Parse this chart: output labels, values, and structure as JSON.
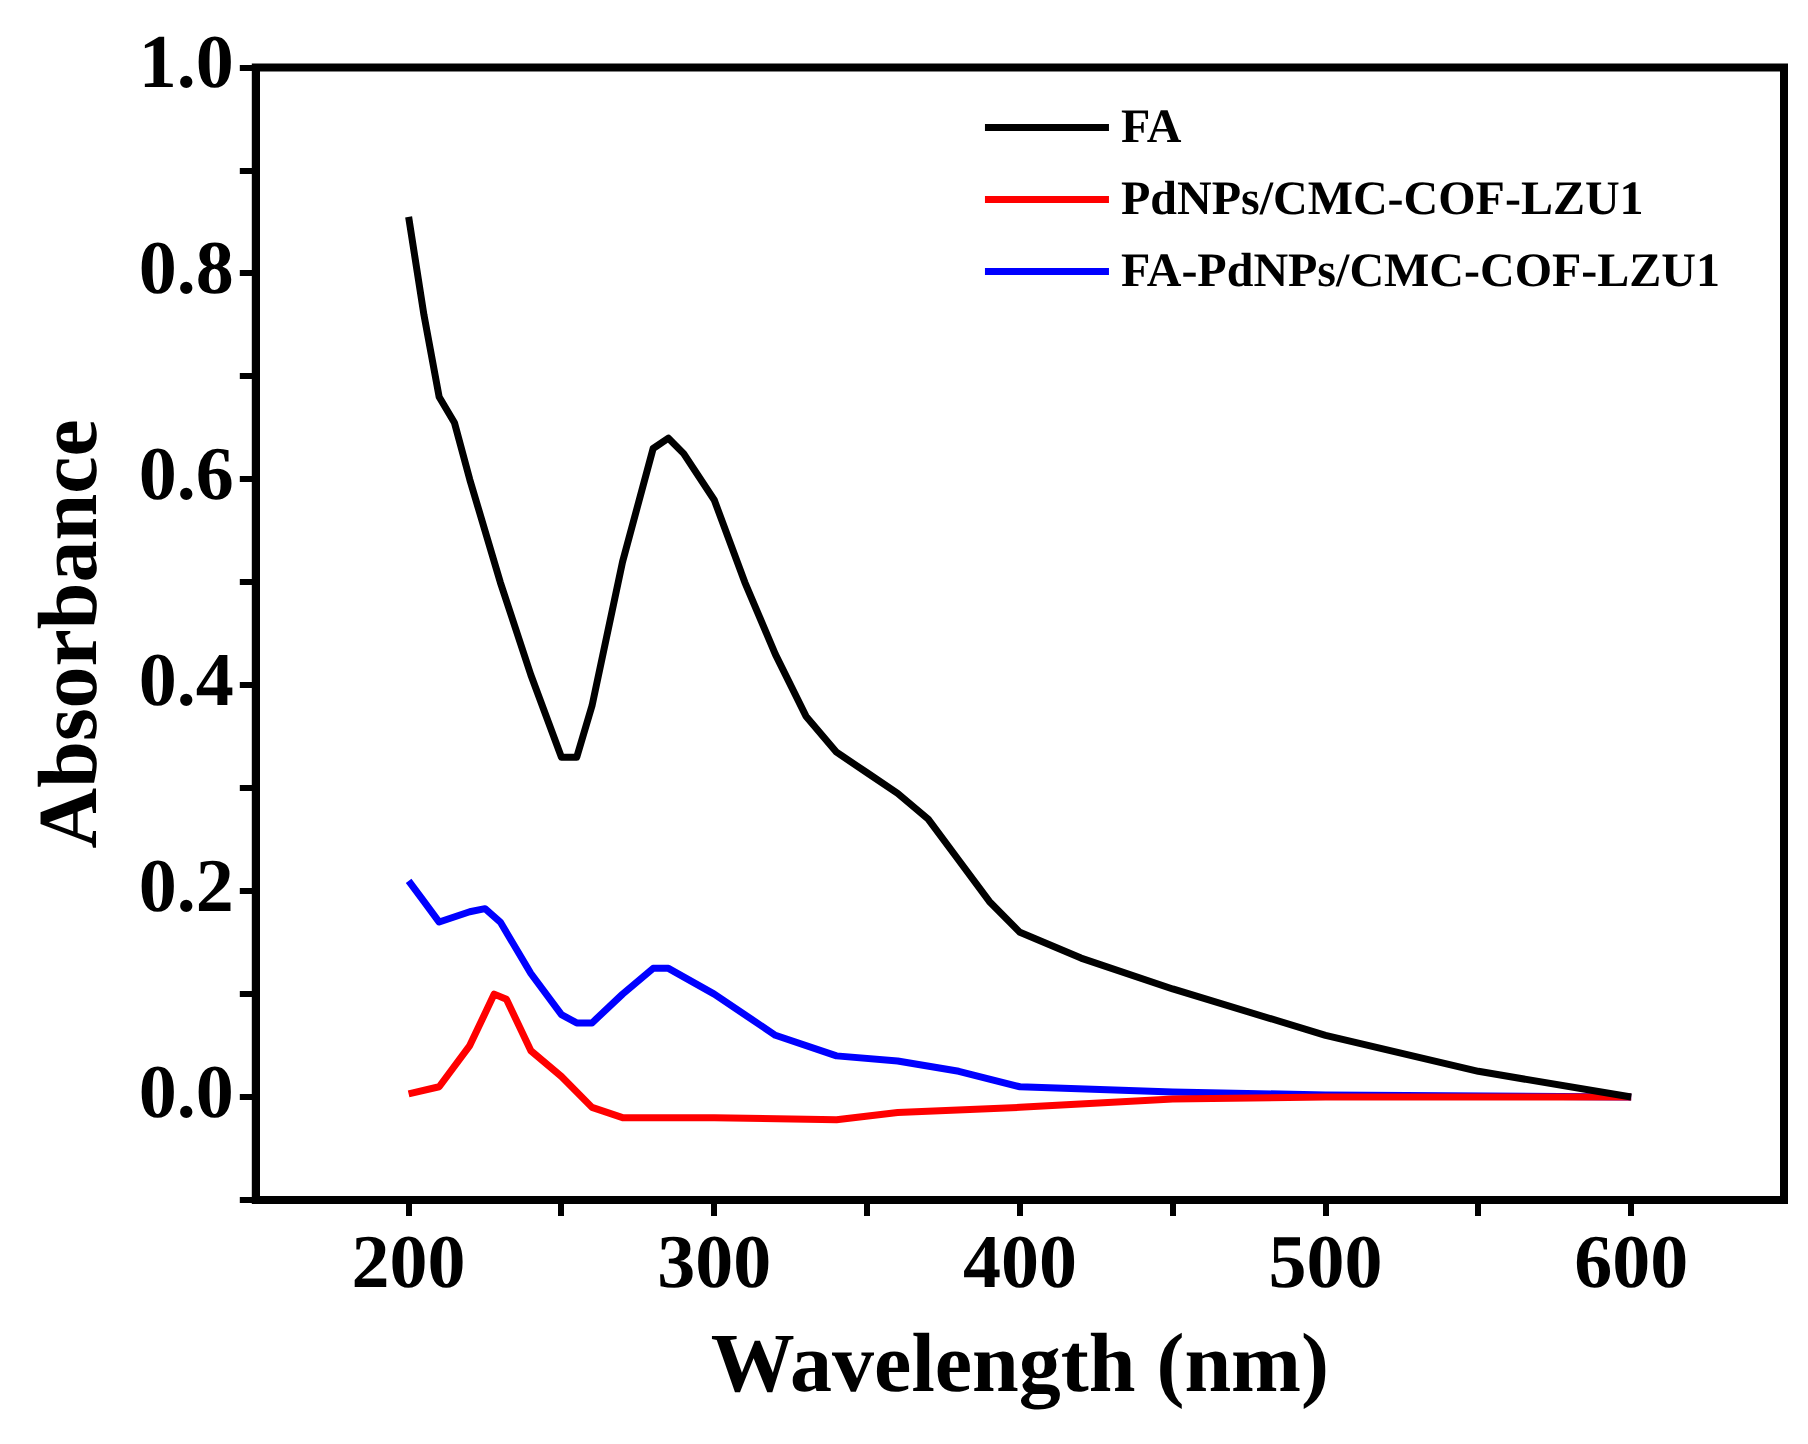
{
  "chart_data": {
    "type": "line",
    "xlabel": "Wavelength (nm)",
    "ylabel": "Absorbance",
    "xlim": [
      150,
      650
    ],
    "xticks": [
      200,
      {
        "value": 250,
        "label": null
      },
      300,
      {
        "value": 350,
        "label": null
      },
      400,
      {
        "value": 450,
        "label": null
      },
      500,
      {
        "value": 550,
        "label": null
      },
      600
    ],
    "ylim": [
      -0.1,
      1.0
    ],
    "yticks": [
      {
        "value": -0.1,
        "label": null
      },
      {
        "value": 0,
        "label": "0.0"
      },
      {
        "value": 0.1,
        "label": null
      },
      {
        "value": 0.2,
        "label": "0.2"
      },
      {
        "value": 0.3,
        "label": null
      },
      {
        "value": 0.4,
        "label": "0.4"
      },
      {
        "value": 0.5,
        "label": null
      },
      {
        "value": 0.6,
        "label": "0.6"
      },
      {
        "value": 0.7,
        "label": null
      },
      {
        "value": 0.8,
        "label": "0.8"
      },
      {
        "value": 0.9,
        "label": null
      },
      {
        "value": 1.0,
        "label": "1.0"
      }
    ],
    "grid": false,
    "legend": "top right",
    "marker": "none",
    "line_style": "solid",
    "series": [
      {
        "name": "FA",
        "color": "#000000",
        "x": [
          200,
          205,
          210,
          215,
          220,
          230,
          240,
          250,
          255,
          260,
          270,
          280,
          285,
          290,
          300,
          310,
          320,
          330,
          340,
          350,
          360,
          370,
          380,
          390,
          400,
          420,
          450,
          500,
          550,
          600
        ],
        "values": [
          0.855,
          0.76,
          0.68,
          0.655,
          0.6,
          0.5,
          0.41,
          0.33,
          0.33,
          0.38,
          0.52,
          0.63,
          0.64,
          0.625,
          0.58,
          0.5,
          0.43,
          0.37,
          0.335,
          0.315,
          0.295,
          0.27,
          0.23,
          0.19,
          0.16,
          0.135,
          0.105,
          0.06,
          0.025,
          0.0
        ]
      },
      {
        "name": "PdNPs/CMC-COF-LZU1",
        "color": "#ff0000",
        "x": [
          200,
          210,
          220,
          228,
          232,
          240,
          250,
          260,
          270,
          300,
          340,
          360,
          400,
          450,
          500,
          600
        ],
        "values": [
          0.003,
          0.01,
          0.05,
          0.1,
          0.095,
          0.045,
          0.02,
          -0.01,
          -0.02,
          -0.02,
          -0.022,
          -0.015,
          -0.01,
          -0.002,
          0.0,
          0.0
        ]
      },
      {
        "name": "FA-PdNPs/CMC-COF-LZU1",
        "color": "#0000ff",
        "x": [
          200,
          205,
          210,
          220,
          225,
          230,
          240,
          250,
          255,
          260,
          270,
          280,
          285,
          300,
          320,
          340,
          360,
          380,
          400,
          450,
          500,
          600
        ],
        "values": [
          0.21,
          0.19,
          0.17,
          0.18,
          0.183,
          0.17,
          0.12,
          0.08,
          0.072,
          0.072,
          0.1,
          0.125,
          0.125,
          0.1,
          0.06,
          0.04,
          0.035,
          0.025,
          0.01,
          0.005,
          0.002,
          0.0
        ]
      }
    ]
  }
}
